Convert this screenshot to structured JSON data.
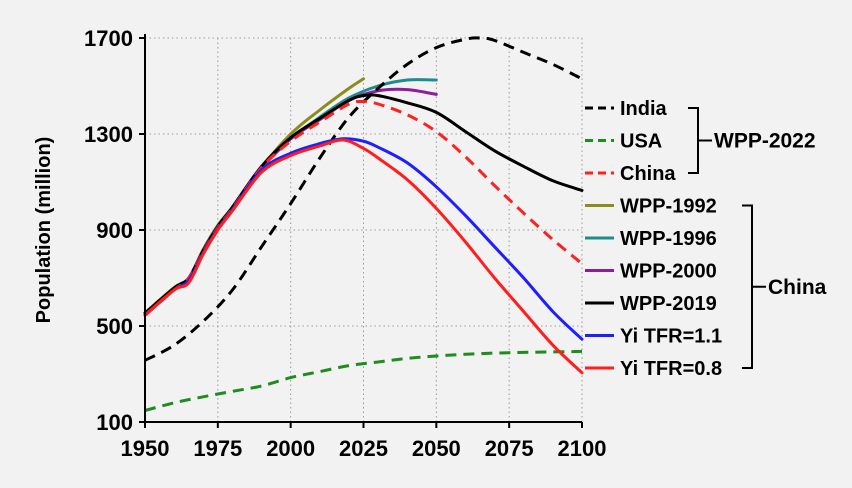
{
  "chart_data": {
    "type": "line",
    "title": "",
    "xlabel": "",
    "ylabel": "Population (million)",
    "xlim": [
      1950,
      2100
    ],
    "ylim": [
      100,
      1700
    ],
    "xticks": [
      1950,
      1975,
      2000,
      2025,
      2050,
      2075,
      2100
    ],
    "yticks": [
      100,
      500,
      900,
      1300,
      1700
    ],
    "grid": true,
    "legend_position": "right",
    "groups": [
      {
        "label": "WPP-2022",
        "members": [
          "India",
          "USA",
          "China"
        ]
      },
      {
        "label": "China",
        "members": [
          "WPP-1992",
          "WPP-1996",
          "WPP-2000",
          "WPP-2019",
          "Yi TFR=1.1",
          "Yi TFR=0.8"
        ]
      }
    ],
    "series": [
      {
        "name": "India",
        "color": "#000000",
        "dash": true,
        "x": [
          1950,
          1960,
          1970,
          1980,
          1990,
          2000,
          2010,
          2020,
          2030,
          2040,
          2050,
          2060,
          2065,
          2070,
          2080,
          2090,
          2100
        ],
        "y": [
          357,
          420,
          520,
          650,
          830,
          1010,
          1200,
          1370,
          1490,
          1590,
          1660,
          1695,
          1700,
          1690,
          1640,
          1590,
          1530
        ]
      },
      {
        "name": "USA",
        "color": "#1e8c1e",
        "dash": true,
        "x": [
          1950,
          1960,
          1970,
          1980,
          1990,
          2000,
          2010,
          2020,
          2030,
          2040,
          2050,
          2060,
          2070,
          2080,
          2090,
          2100
        ],
        "y": [
          148,
          180,
          205,
          228,
          250,
          285,
          310,
          335,
          350,
          365,
          375,
          382,
          387,
          390,
          392,
          394
        ]
      },
      {
        "name": "China",
        "color": "#ff2020",
        "dash": true,
        "x": [
          1950,
          1960,
          1965,
          1970,
          1975,
          1980,
          1990,
          2000,
          2010,
          2020,
          2025,
          2030,
          2040,
          2050,
          2060,
          2070,
          2080,
          2090,
          2100
        ],
        "y": [
          545,
          650,
          700,
          810,
          910,
          990,
          1160,
          1270,
          1350,
          1425,
          1435,
          1425,
          1380,
          1310,
          1205,
          1085,
          970,
          860,
          760
        ]
      },
      {
        "name": "WPP-1992",
        "color": "#8c8c1e",
        "dash": false,
        "x": [
          1950,
          1960,
          1965,
          1970,
          1975,
          1980,
          1990,
          2000,
          2010,
          2020,
          2025
        ],
        "y": [
          555,
          660,
          700,
          820,
          920,
          995,
          1160,
          1300,
          1400,
          1490,
          1530
        ]
      },
      {
        "name": "WPP-1996",
        "color": "#1e8c8c",
        "dash": false,
        "x": [
          1990,
          2000,
          2010,
          2020,
          2030,
          2040,
          2050
        ],
        "y": [
          1160,
          1280,
          1370,
          1450,
          1500,
          1525,
          1525
        ]
      },
      {
        "name": "WPP-2000",
        "color": "#8c1e9c",
        "dash": false,
        "x": [
          1990,
          2000,
          2010,
          2020,
          2030,
          2040,
          2050
        ],
        "y": [
          1160,
          1280,
          1360,
          1440,
          1480,
          1485,
          1465
        ]
      },
      {
        "name": "WPP-2019",
        "color": "#000000",
        "dash": false,
        "x": [
          1950,
          1960,
          1965,
          1970,
          1975,
          1980,
          1990,
          2000,
          2010,
          2020,
          2025,
          2030,
          2040,
          2050,
          2060,
          2070,
          2080,
          2090,
          2100
        ],
        "y": [
          554,
          658,
          700,
          815,
          915,
          995,
          1165,
          1285,
          1365,
          1440,
          1460,
          1460,
          1430,
          1390,
          1310,
          1230,
          1165,
          1105,
          1065
        ]
      },
      {
        "name": "Yi TFR=1.1",
        "color": "#1e1eff",
        "dash": false,
        "x": [
          1950,
          1960,
          1965,
          1970,
          1975,
          1980,
          1990,
          2000,
          2010,
          2018,
          2025,
          2030,
          2040,
          2050,
          2060,
          2070,
          2080,
          2090,
          2100
        ],
        "y": [
          545,
          650,
          690,
          805,
          905,
          985,
          1150,
          1220,
          1260,
          1280,
          1270,
          1245,
          1180,
          1080,
          960,
          830,
          700,
          560,
          445
        ]
      },
      {
        "name": "Yi TFR=0.8",
        "color": "#ff1e1e",
        "dash": false,
        "x": [
          1950,
          1960,
          1965,
          1970,
          1975,
          1980,
          1990,
          2000,
          2010,
          2018,
          2025,
          2030,
          2040,
          2050,
          2060,
          2070,
          2080,
          2090,
          2100
        ],
        "y": [
          545,
          650,
          680,
          800,
          900,
          980,
          1140,
          1210,
          1250,
          1275,
          1240,
          1200,
          1110,
          990,
          850,
          700,
          560,
          420,
          305
        ]
      }
    ]
  }
}
